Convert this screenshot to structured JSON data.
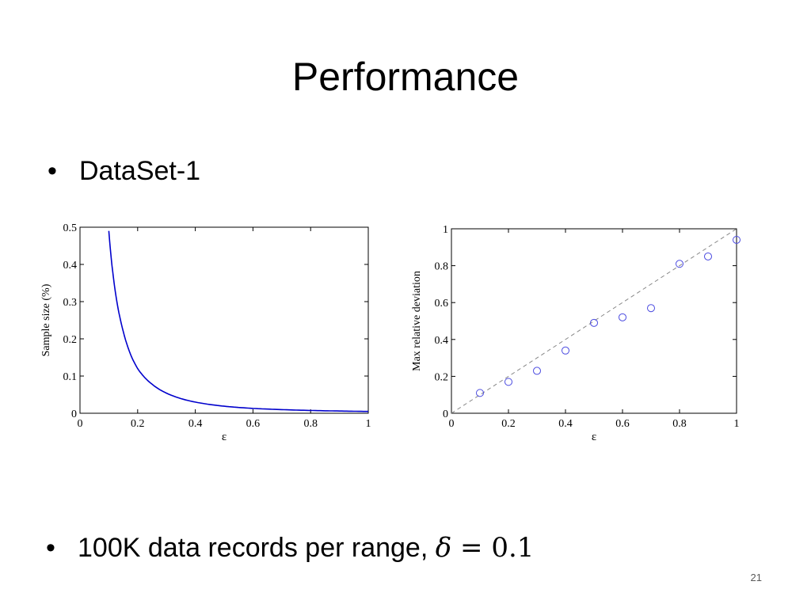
{
  "slide": {
    "title": "Performance",
    "bullets": [
      "DataSet-1",
      "100K data records per range, "
    ],
    "formula": {
      "symbol": "δ",
      "operator": "=",
      "value": "0.1"
    },
    "slide_number": "21"
  },
  "chart_data": [
    {
      "type": "line",
      "title": "",
      "xlabel": "ε",
      "ylabel": "Sample size (%)",
      "xlim": [
        0,
        1
      ],
      "ylim": [
        0,
        0.5
      ],
      "xticks": [
        "0",
        "0.2",
        "0.4",
        "0.6",
        "0.8",
        "1"
      ],
      "yticks": [
        "0",
        "0.1",
        "0.2",
        "0.3",
        "0.4",
        "0.5"
      ],
      "grid": false,
      "color": "#0000cc",
      "series": [
        {
          "x": [
            0.1,
            0.12,
            0.15,
            0.2,
            0.25,
            0.3,
            0.4,
            0.5,
            0.6,
            0.7,
            0.8,
            0.9,
            1.0
          ],
          "values": [
            0.49,
            0.34,
            0.22,
            0.12,
            0.078,
            0.054,
            0.03,
            0.019,
            0.013,
            0.0098,
            0.0075,
            0.006,
            0.0048
          ]
        }
      ]
    },
    {
      "type": "scatter",
      "title": "",
      "xlabel": "ε",
      "ylabel": "Max relative deviation",
      "xlim": [
        0,
        1
      ],
      "ylim": [
        0,
        1
      ],
      "xticks": [
        "0",
        "0.2",
        "0.4",
        "0.6",
        "0.8",
        "1"
      ],
      "yticks": [
        "0",
        "0.2",
        "0.4",
        "0.6",
        "0.8",
        "1"
      ],
      "grid": false,
      "color": "#4a4ae0",
      "reference_line": {
        "style": "dashed",
        "color": "#888888",
        "x": [
          0,
          1
        ],
        "y": [
          0,
          1
        ]
      },
      "series": [
        {
          "x": [
            0.1,
            0.2,
            0.3,
            0.4,
            0.5,
            0.6,
            0.7,
            0.8,
            0.9,
            1.0
          ],
          "values": [
            0.11,
            0.17,
            0.23,
            0.34,
            0.49,
            0.52,
            0.57,
            0.81,
            0.85,
            0.94
          ]
        }
      ]
    }
  ]
}
